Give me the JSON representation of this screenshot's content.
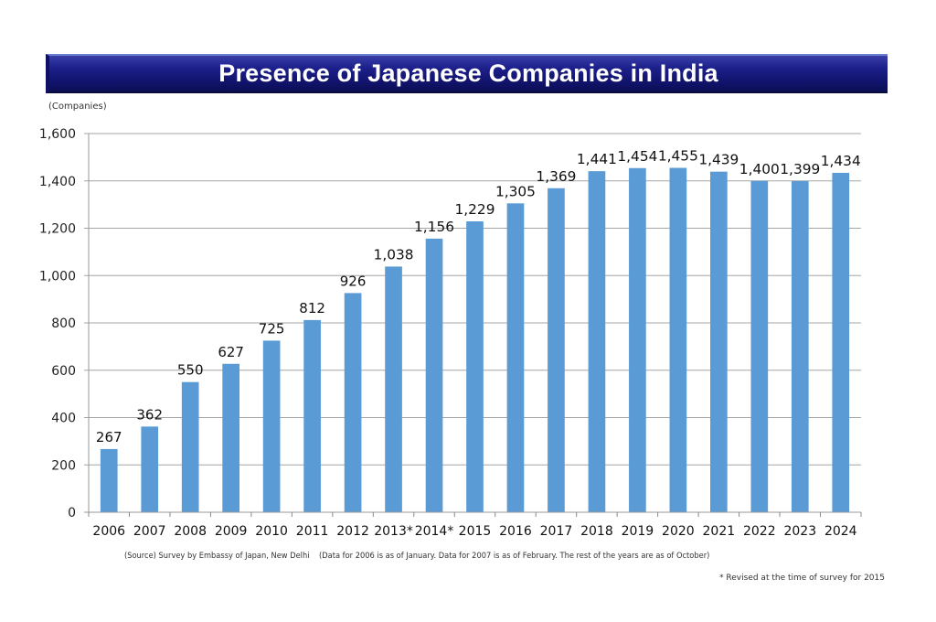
{
  "header": {
    "title": "Presence of Japanese Companies in India"
  },
  "footer": {
    "source": "(Source) Survey by Embassy of Japan, New Delhi    (Data for 2006 is as of January. Data for 2007 is as of February. The rest of the years are as of October)",
    "revised_note": "* Revised at the time of survey for 2015"
  },
  "colors": {
    "bar": "#5b9bd5",
    "title_bg": "#1c1f8a",
    "gridline": "#a6a6a6"
  },
  "chart_data": {
    "type": "bar",
    "title": "Presence of Japanese Companies in India",
    "ylabel": "(Companies)",
    "xlabel": "",
    "categories": [
      "2006",
      "2007",
      "2008",
      "2009",
      "2010",
      "2011",
      "2012",
      "2013*",
      "2014*",
      "2015",
      "2016",
      "2017",
      "2018",
      "2019",
      "2020",
      "2021",
      "2022",
      "2023",
      "2024"
    ],
    "values": [
      267,
      362,
      550,
      627,
      725,
      812,
      926,
      1038,
      1156,
      1229,
      1305,
      1369,
      1441,
      1454,
      1455,
      1439,
      1400,
      1399,
      1434
    ],
    "value_labels": [
      "267",
      "362",
      "550",
      "627",
      "725",
      "812",
      "926",
      "1,038",
      "1,156",
      "1,229",
      "1,305",
      "1,369",
      "1,441",
      "1,454",
      "1,455",
      "1,439",
      "1,400",
      "1,399",
      "1,434"
    ],
    "ylim": [
      0,
      1600
    ],
    "yticks": [
      0,
      200,
      400,
      600,
      800,
      1000,
      1200,
      1400,
      1600
    ],
    "ytick_labels": [
      "0",
      "200",
      "400",
      "600",
      "800",
      "1,000",
      "1,200",
      "1,400",
      "1,600"
    ],
    "grid": true,
    "legend": "none"
  }
}
